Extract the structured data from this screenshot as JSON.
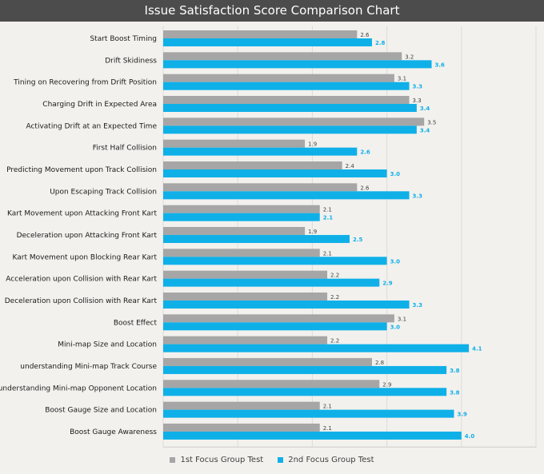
{
  "title": "Issue Satisfaction Score Comparison Chart",
  "colors": {
    "series1": "#a6a6a6",
    "series2": "#0fb0e8",
    "title_bg": "#4c4c4c",
    "background": "#f2f1ee"
  },
  "chart_data": {
    "type": "bar",
    "orientation": "horizontal",
    "title": "Issue Satisfaction Score Comparison Chart",
    "xlim": [
      0,
      5
    ],
    "xticks": [
      0,
      1,
      2,
      3,
      4,
      5
    ],
    "grid": true,
    "legend_position": "bottom",
    "categories": [
      "Start Boost Timing",
      "Drift Skidiness",
      "Tining on Recovering from Drift Position",
      "Charging Drift in Expected Area",
      "Activating Drift at an Expected Time",
      "First Half Collision",
      "Predicting Movement upon Track Collision",
      "Upon Escaping Track Collision",
      "Kart Movement upon Attacking Front Kart",
      "Deceleration upon Attacking Front Kart",
      "Kart Movement upon Blocking Rear Kart",
      "Acceleration upon Collision with Rear Kart",
      "Deceleration upon Collision with Rear Kart",
      "Boost Effect",
      "Mini-map Size and Location",
      "understanding Mini-map Track Course",
      "understanding Mini-map  Opponent Location",
      "Boost Gauge Size and Location",
      "Boost Gauge Awareness"
    ],
    "series": [
      {
        "name": "1st Focus Group Test",
        "values": [
          2.6,
          3.2,
          3.1,
          3.3,
          3.5,
          1.9,
          2.4,
          2.6,
          2.1,
          1.9,
          2.1,
          2.2,
          2.2,
          3.1,
          2.2,
          2.8,
          2.9,
          2.1,
          2.1
        ]
      },
      {
        "name": "2nd Focus Group Test",
        "values": [
          2.8,
          3.6,
          3.3,
          3.4,
          3.4,
          2.6,
          3.0,
          3.3,
          2.1,
          2.5,
          3.0,
          2.9,
          3.3,
          3.0,
          4.1,
          3.8,
          3.8,
          3.9,
          4.0
        ]
      }
    ]
  }
}
